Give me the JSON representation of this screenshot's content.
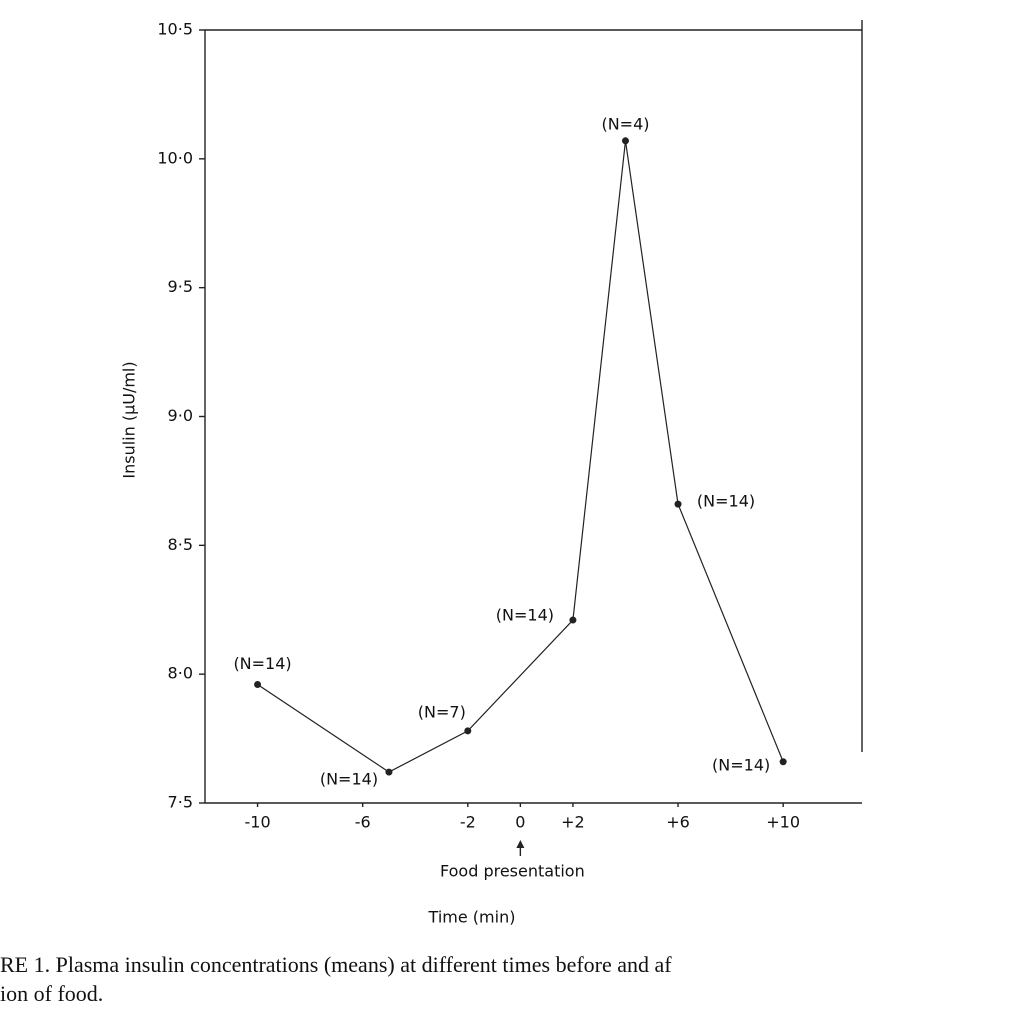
{
  "chart_data": {
    "type": "line",
    "x_label": "Time (min)",
    "y_label": "Insulin (µU/ml)",
    "x": [
      -10,
      -5,
      -2,
      2,
      4,
      6,
      10
    ],
    "series": [
      {
        "color": "#222222",
        "values": [
          7.96,
          7.62,
          7.78,
          8.21,
          10.07,
          8.66,
          7.66
        ]
      }
    ],
    "point_labels": [
      "(N=14)",
      "(N=14)",
      "(N=7)",
      "(N=14)",
      "(N=4)",
      "(N=14)",
      "(N=14)"
    ],
    "xlim": [
      -12,
      13
    ],
    "ylim": [
      7.5,
      10.5
    ],
    "xticks": [
      -10,
      -6,
      -2,
      0,
      {
        "value": 2,
        "label": "+2"
      },
      {
        "value": 6,
        "label": "+6"
      },
      {
        "value": 10,
        "label": "+10"
      }
    ],
    "yticks": [
      {
        "value": 7.5,
        "label": "7·5"
      },
      {
        "value": 8.0,
        "label": "8·0"
      },
      {
        "value": 8.5,
        "label": "8·5"
      },
      {
        "value": 9.0,
        "label": "9·0"
      },
      {
        "value": 9.5,
        "label": "9·5"
      },
      {
        "value": 10.0,
        "label": "10·0"
      },
      {
        "value": 10.5,
        "label": "10·5"
      }
    ],
    "annotation": {
      "x": 0,
      "text": "Food presentation"
    },
    "caption": [
      "RE 1.   Plasma insulin concentrations (means) at different times before and af",
      "ion of food."
    ]
  }
}
